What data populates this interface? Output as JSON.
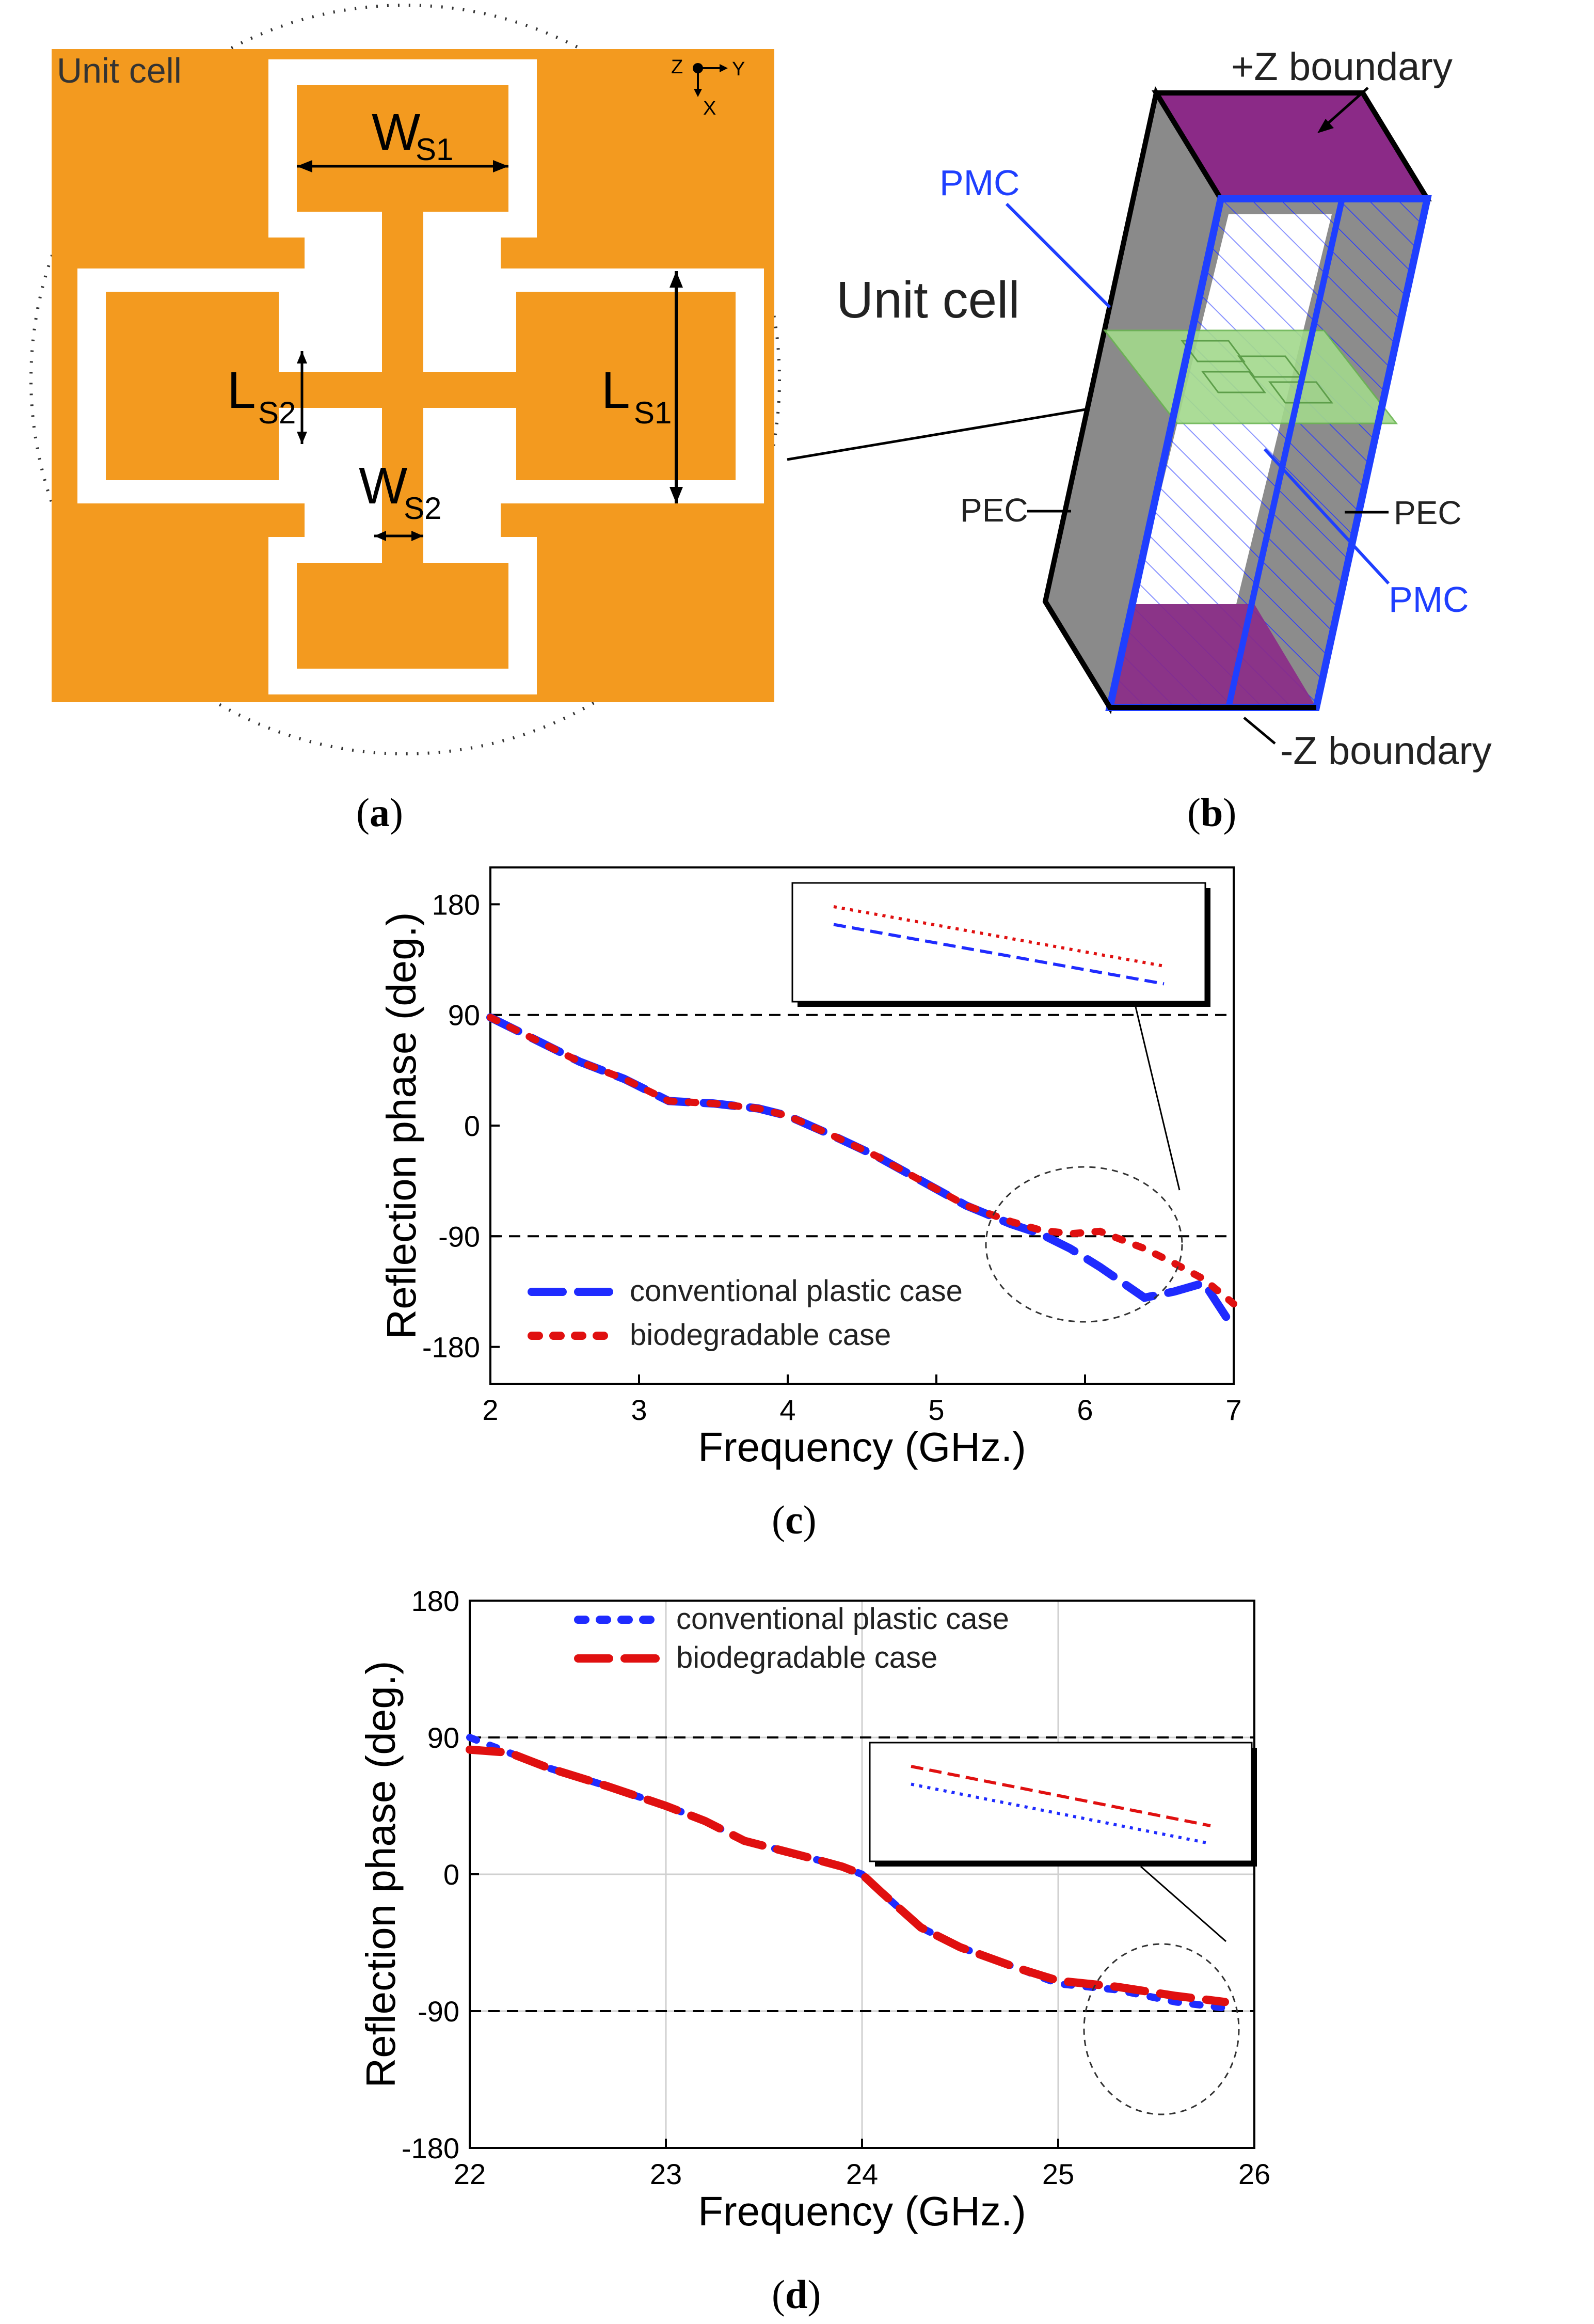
{
  "panel_a": {
    "title": "Unit cell",
    "ws1_label": "W",
    "ws1_sub": "S1",
    "ws2_label": "W",
    "ws2_sub": "S2",
    "ls1_label": "L",
    "ls1_sub": "S1",
    "ls2_label": "L",
    "ls2_sub": "S2",
    "axis_z": "Z",
    "axis_y": "Y",
    "axis_x": "X",
    "colors": {
      "substrate": "#f39a1f",
      "slot": "#ffffff"
    }
  },
  "panel_b": {
    "title": "Unit cell",
    "plus_z": "+Z boundary",
    "minus_z": "-Z boundary",
    "pmc_top": "PMC",
    "pmc_right": "PMC",
    "pec_left": "PEC",
    "pec_right": "PEC",
    "colors": {
      "boundary": "#8b2a87",
      "pec_face": "#8a8a8a",
      "pmc": "#1f3fff",
      "cell": "#a3d98c"
    }
  },
  "captions": {
    "a": "a",
    "b": "b",
    "c": "c",
    "d": "d"
  },
  "chart_data": [
    {
      "id": "c",
      "type": "line",
      "title": "",
      "xlabel": "Frequency (GHz.)",
      "ylabel": "Reflection phase (deg.)",
      "xlim": [
        2,
        7
      ],
      "ylim": [
        -210,
        210
      ],
      "xticks": [
        2,
        3,
        4,
        5,
        6,
        7
      ],
      "yticks": [
        180,
        90,
        0,
        -90,
        -180
      ],
      "reference_lines": [
        90,
        -90
      ],
      "legend_position": "lower-left",
      "series": [
        {
          "name": "conventional plastic case",
          "color": "#1f2bff",
          "style": "dash",
          "x": [
            2.0,
            2.3,
            2.6,
            2.9,
            3.2,
            3.5,
            3.8,
            4.0,
            4.3,
            4.6,
            4.9,
            5.2,
            5.5,
            5.7,
            5.9,
            6.1,
            6.4,
            6.6,
            6.8,
            7.0
          ],
          "y": [
            88,
            70,
            52,
            38,
            20,
            18,
            14,
            8,
            -8,
            -25,
            -45,
            -65,
            -80,
            -88,
            -100,
            -115,
            -140,
            -135,
            -128,
            -165
          ]
        },
        {
          "name": "biodegradable case",
          "color": "#e01010",
          "style": "dot",
          "x": [
            2.0,
            2.3,
            2.6,
            2.9,
            3.2,
            3.5,
            3.8,
            4.0,
            4.3,
            4.6,
            4.9,
            5.2,
            5.5,
            5.7,
            5.9,
            6.1,
            6.4,
            6.6,
            6.8,
            7.0
          ],
          "y": [
            88,
            70,
            52,
            38,
            20,
            18,
            14,
            8,
            -8,
            -25,
            -45,
            -65,
            -78,
            -85,
            -88,
            -86,
            -100,
            -112,
            -125,
            -145
          ]
        }
      ]
    },
    {
      "id": "d",
      "type": "line",
      "title": "",
      "xlabel": "Frequency (GHz.)",
      "ylabel": "Reflection phase (deg.)",
      "xlim": [
        22,
        26
      ],
      "ylim": [
        -180,
        180
      ],
      "xticks": [
        22,
        23,
        24,
        25,
        26
      ],
      "yticks": [
        180,
        90,
        0,
        -90,
        -180
      ],
      "reference_lines": [
        90,
        -90
      ],
      "legend_position": "top-left",
      "series": [
        {
          "name": "conventional plastic case",
          "color": "#1f2bff",
          "style": "dot",
          "x": [
            22.0,
            22.2,
            22.4,
            22.7,
            23.0,
            23.2,
            23.4,
            23.7,
            23.9,
            24.0,
            24.1,
            24.3,
            24.5,
            24.8,
            25.0,
            25.3,
            25.6,
            25.85
          ],
          "y": [
            90,
            80,
            70,
            58,
            45,
            35,
            22,
            12,
            5,
            0,
            -12,
            -35,
            -48,
            -62,
            -72,
            -76,
            -84,
            -88
          ]
        },
        {
          "name": "biodegradable case",
          "color": "#e01010",
          "style": "dash",
          "x": [
            22.0,
            22.2,
            22.4,
            22.7,
            23.0,
            23.2,
            23.4,
            23.7,
            23.9,
            24.0,
            24.1,
            24.3,
            24.5,
            24.8,
            25.0,
            25.3,
            25.6,
            25.85
          ],
          "y": [
            82,
            80,
            70,
            58,
            45,
            35,
            22,
            12,
            5,
            0,
            -12,
            -35,
            -48,
            -62,
            -70,
            -74,
            -80,
            -84
          ]
        }
      ]
    }
  ]
}
